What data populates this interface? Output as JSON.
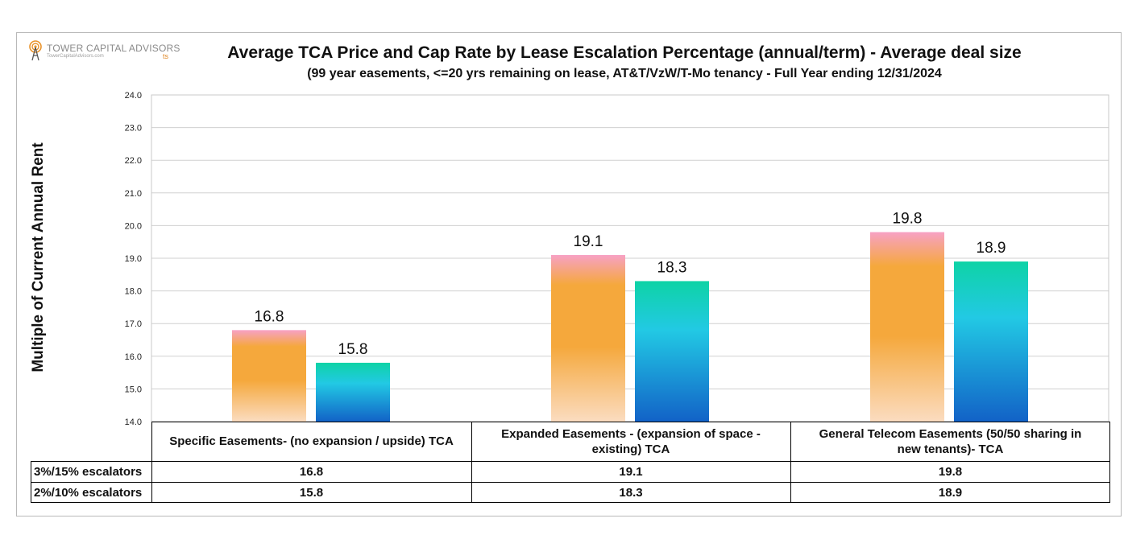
{
  "logo": {
    "name": "TOWER CAPITAL ADVISORS",
    "site": "TowerCapitalAdvisors.com",
    "tag": "ts"
  },
  "chart_data": {
    "type": "bar",
    "title": "Average TCA Price and Cap Rate by Lease Escalation Percentage (annual/term) - Average deal size",
    "subtitle": "(99 year easements, <=20 yrs remaining on lease, AT&T/VzW/T-Mo tenancy - Full Year ending 12/31/2024",
    "ylabel": "Multiple of Current Annual Rent",
    "xlabel": "",
    "ylim": [
      14.0,
      24.0
    ],
    "yticks": [
      "14.0",
      "15.0",
      "16.0",
      "17.0",
      "18.0",
      "19.0",
      "20.0",
      "21.0",
      "22.0",
      "23.0",
      "24.0"
    ],
    "grid": true,
    "categories": [
      "Specific Easements- (no expansion / upside) TCA",
      "Expanded Easements - (expansion of space - existing) TCA",
      "General Telecom Easements (50/50 sharing in new tenants)- TCA"
    ],
    "series": [
      {
        "name": "3%/15% escalators",
        "values": [
          16.8,
          19.1,
          19.8
        ],
        "labels": [
          "16.8",
          "19.1",
          "19.8"
        ],
        "colors": [
          "#f7a1c4",
          "#f5a83c",
          "#fbdcc0"
        ]
      },
      {
        "name": "2%/10% escalators",
        "values": [
          15.8,
          18.3,
          18.9
        ],
        "labels": [
          "15.8",
          "18.3",
          "18.9"
        ],
        "colors": [
          "#0ed3a6",
          "#22c9e4",
          "#1262c7"
        ]
      }
    ],
    "table_categories": [
      "Specific Easements- (no expansion / upside) TCA",
      "Expanded Easements - (expansion of space -\nexisting) TCA",
      "General Telecom Easements (50/50 sharing in\nnew tenants)- TCA"
    ]
  }
}
